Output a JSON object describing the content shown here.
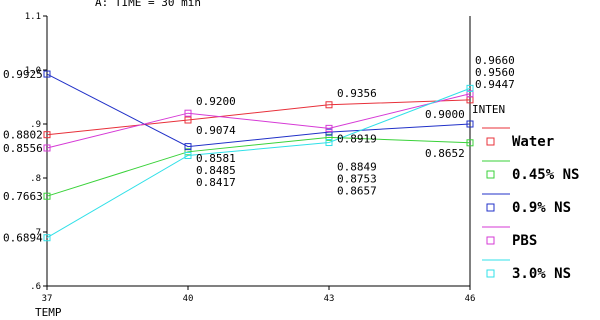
{
  "chart_data": {
    "type": "line",
    "title": "A: TIME = 30 min",
    "xlabel": "TEMP",
    "ylabel": "",
    "legend_title": "INTEN",
    "x": [
      37,
      40,
      43,
      46
    ],
    "x_tick_labels": [
      "37",
      "40",
      "43",
      "46"
    ],
    "ylim": [
      0.6,
      1.1
    ],
    "y_ticks": [
      0.6,
      0.7,
      0.8,
      0.9,
      1.0,
      1.1
    ],
    "y_tick_labels": [
      ".6",
      ".7",
      ".8",
      ".9",
      "1.0",
      "1.1"
    ],
    "grid": false,
    "legend_position": "right",
    "series": [
      {
        "name": "Water",
        "color": "#e8303a",
        "values": [
          0.8802,
          0.9074,
          0.9356,
          0.9447
        ]
      },
      {
        "name": "0.45% NS",
        "color": "#3ad23a",
        "values": [
          0.7663,
          0.8485,
          0.8753,
          0.8652
        ]
      },
      {
        "name": "0.9% NS",
        "color": "#2030c8",
        "values": [
          0.9925,
          0.8581,
          0.8849,
          0.9
        ]
      },
      {
        "name": "PBS",
        "color": "#d63ad6",
        "values": [
          0.8556,
          0.92,
          0.8919,
          0.956
        ]
      },
      {
        "name": "3.0% NS",
        "color": "#30e0e8",
        "values": [
          0.6894,
          0.8417,
          0.8657,
          0.966
        ]
      }
    ],
    "data_labels": [
      {
        "x": 37,
        "series": "0.9% NS",
        "text": "0.9925"
      },
      {
        "x": 37,
        "series": "Water",
        "text": "0.8802"
      },
      {
        "x": 37,
        "series": "PBS",
        "text": "0.8556"
      },
      {
        "x": 37,
        "series": "0.45% NS",
        "text": "0.7663"
      },
      {
        "x": 37,
        "series": "3.0% NS",
        "text": "0.6894"
      },
      {
        "x": 40,
        "series": "PBS",
        "text": "0.9200"
      },
      {
        "x": 40,
        "series": "Water",
        "text": "0.9074"
      },
      {
        "x": 40,
        "series": "0.9% NS",
        "text": "0.8581"
      },
      {
        "x": 40,
        "series": "0.45% NS",
        "text": "0.8485"
      },
      {
        "x": 40,
        "series": "3.0% NS",
        "text": "0.8417"
      },
      {
        "x": 43,
        "series": "Water",
        "text": "0.9356"
      },
      {
        "x": 43,
        "series": "PBS",
        "text": "0.8919"
      },
      {
        "x": 43,
        "series": "0.9% NS",
        "text": "0.8849"
      },
      {
        "x": 43,
        "series": "0.45% NS",
        "text": "0.8753"
      },
      {
        "x": 43,
        "series": "3.0% NS",
        "text": "0.8657"
      },
      {
        "x": 46,
        "series": "3.0% NS",
        "text": "0.9660"
      },
      {
        "x": 46,
        "series": "PBS",
        "text": "0.9560"
      },
      {
        "x": 46,
        "series": "Water",
        "text": "0.9447"
      },
      {
        "x": 46,
        "series": "0.9% NS",
        "text": "0.9000"
      },
      {
        "x": 46,
        "series": "0.45% NS",
        "text": "0.8652"
      }
    ]
  }
}
